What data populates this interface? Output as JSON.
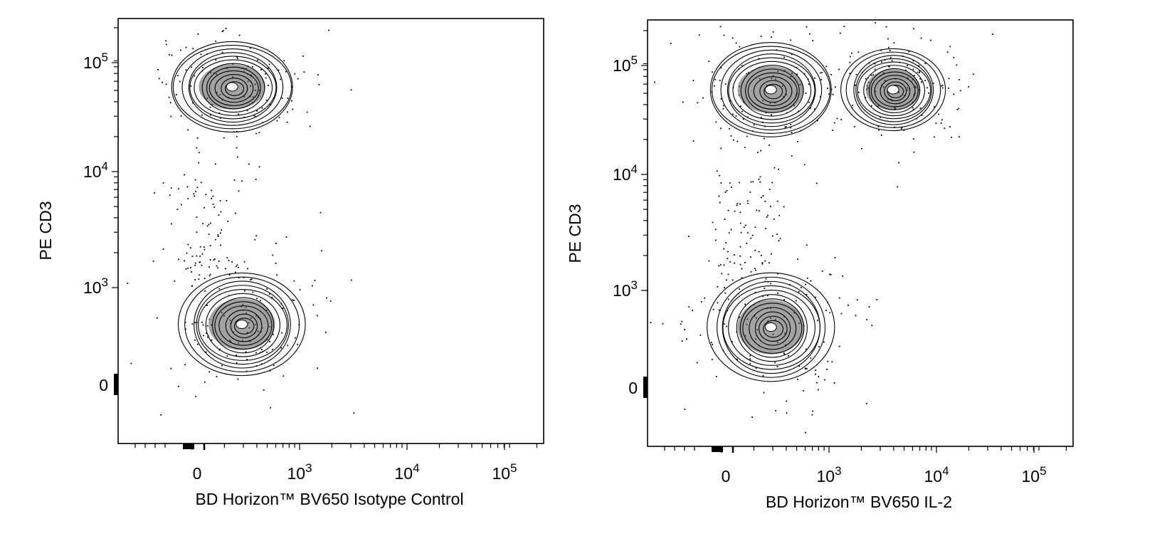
{
  "chart_data": [
    {
      "type": "scatter",
      "subtype": "flow-cytometry contour plot with outlier dots",
      "xlabel": "BD Horizon™ BV650 Isotype Control",
      "ylabel": "PE CD3",
      "x_scale": "biexponential",
      "y_scale": "biexponential",
      "x_ticks": [
        {
          "value": 0,
          "base": "0",
          "exp": ""
        },
        {
          "value": 1000,
          "base": "10",
          "exp": "3"
        },
        {
          "value": 10000,
          "base": "10",
          "exp": "4"
        },
        {
          "value": 100000,
          "base": "10",
          "exp": "5"
        }
      ],
      "y_ticks": [
        {
          "value": 0,
          "base": "0",
          "exp": ""
        },
        {
          "value": 1000,
          "base": "10",
          "exp": "3"
        },
        {
          "value": 10000,
          "base": "10",
          "exp": "4"
        },
        {
          "value": 100000,
          "base": "10",
          "exp": "5"
        }
      ],
      "grid": false,
      "populations": [
        {
          "name_hint": "CD3+ cluster",
          "x_center": 100,
          "y_center": 60000,
          "x_spread": 350,
          "y_spread": 45000
        },
        {
          "name_hint": "CD3- cluster",
          "x_center": 150,
          "y_center": 300,
          "x_spread": 400,
          "y_spread": 600
        }
      ]
    },
    {
      "type": "scatter",
      "subtype": "flow-cytometry contour plot with outlier dots",
      "xlabel": "BD Horizon™ BV650 IL-2",
      "ylabel": "PE CD3",
      "x_scale": "biexponential",
      "y_scale": "biexponential",
      "x_ticks": [
        {
          "value": 0,
          "base": "0",
          "exp": ""
        },
        {
          "value": 1000,
          "base": "10",
          "exp": "3"
        },
        {
          "value": 10000,
          "base": "10",
          "exp": "4"
        },
        {
          "value": 100000,
          "base": "10",
          "exp": "5"
        }
      ],
      "y_ticks": [
        {
          "value": 0,
          "base": "0",
          "exp": ""
        },
        {
          "value": 1000,
          "base": "10",
          "exp": "3"
        },
        {
          "value": 10000,
          "base": "10",
          "exp": "4"
        },
        {
          "value": 100000,
          "base": "10",
          "exp": "5"
        }
      ],
      "grid": false,
      "populations": [
        {
          "name_hint": "CD3+ IL-2- cluster",
          "x_center": 150,
          "y_center": 60000,
          "x_spread": 500,
          "y_spread": 50000
        },
        {
          "name_hint": "CD3+ IL-2+ cluster",
          "x_center": 4000,
          "y_center": 60000,
          "x_spread": 6000,
          "y_spread": 35000
        },
        {
          "name_hint": "CD3- cluster",
          "x_center": 150,
          "y_center": 300,
          "x_spread": 600,
          "y_spread": 700
        }
      ]
    }
  ],
  "colors": {
    "axis": "#000000",
    "contour": "#000000",
    "dots": "#000000",
    "background": "#ffffff"
  }
}
